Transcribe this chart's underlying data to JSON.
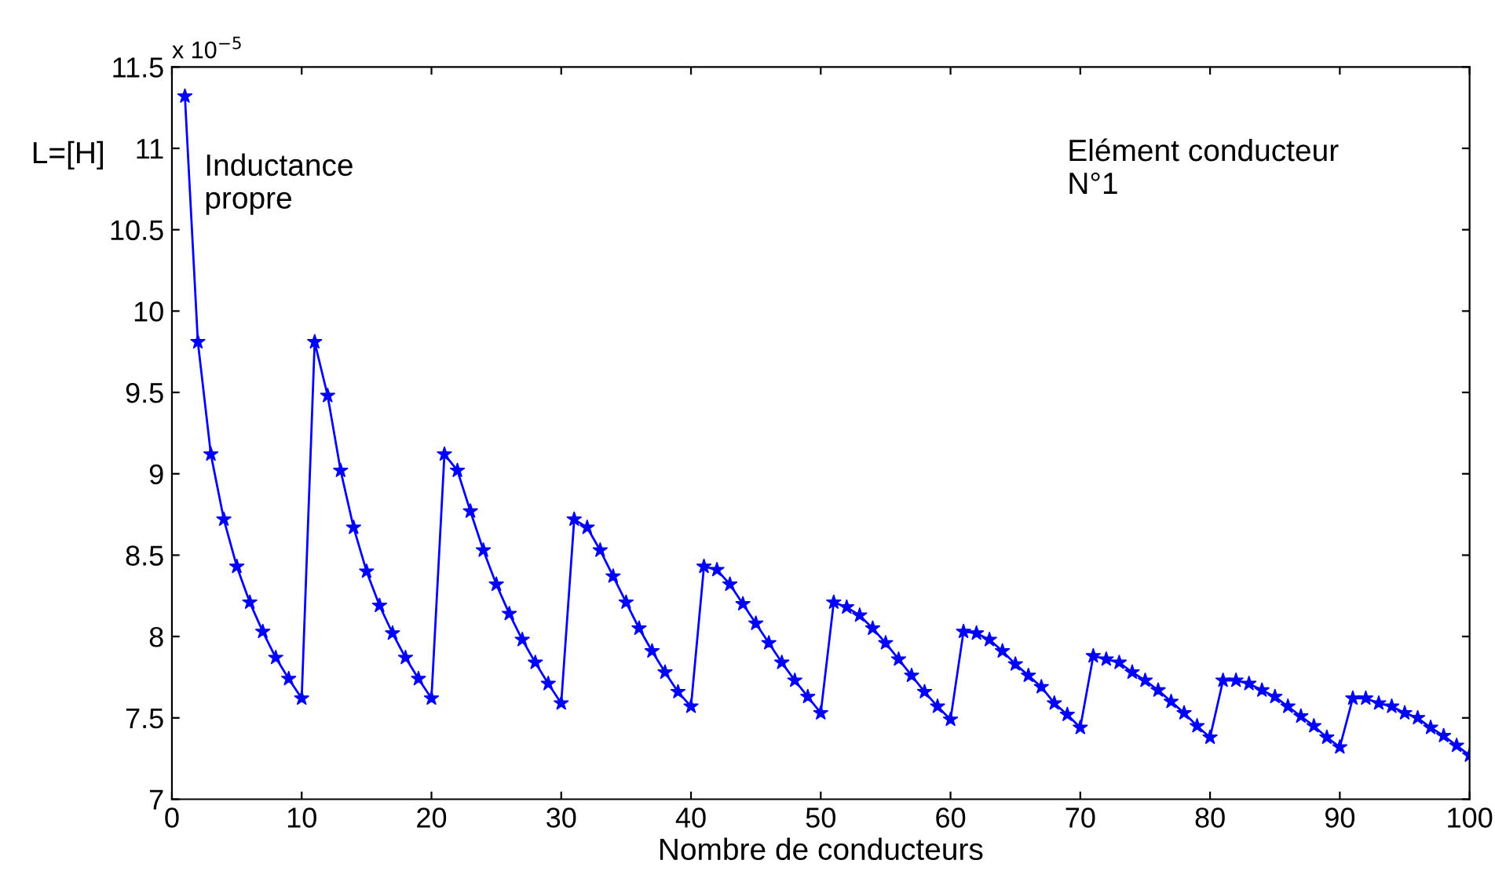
{
  "chart_data": {
    "type": "line",
    "xlabel": "Nombre de conducteurs",
    "ylabel": "L=[H]",
    "annotations": [
      "x 10$^{−5}$",
      "Inductance\npropre",
      "Elément conducteur\nN°1"
    ],
    "x": [
      1,
      2,
      3,
      4,
      5,
      6,
      7,
      8,
      9,
      10,
      11,
      12,
      13,
      14,
      15,
      16,
      17,
      18,
      19,
      20,
      21,
      22,
      23,
      24,
      25,
      26,
      27,
      28,
      29,
      30,
      31,
      32,
      33,
      34,
      35,
      36,
      37,
      38,
      39,
      40,
      41,
      42,
      43,
      44,
      45,
      46,
      47,
      48,
      49,
      50,
      51,
      52,
      53,
      54,
      55,
      56,
      57,
      58,
      59,
      60,
      61,
      62,
      63,
      64,
      65,
      66,
      67,
      68,
      69,
      70,
      71,
      72,
      73,
      74,
      75,
      76,
      77,
      78,
      79,
      80,
      81,
      82,
      83,
      84,
      85,
      86,
      87,
      88,
      89,
      90,
      91,
      92,
      93,
      94,
      95,
      96,
      97,
      98,
      99,
      100
    ],
    "series": [
      {
        "color": "#0000ff",
        "values": [
          11.32,
          9.81,
          9.12,
          8.72,
          8.43,
          8.21,
          8.03,
          7.87,
          7.74,
          7.62,
          9.81,
          9.48,
          9.02,
          8.67,
          8.4,
          8.19,
          8.02,
          7.87,
          7.74,
          7.62,
          9.12,
          9.02,
          8.77,
          8.53,
          8.32,
          8.14,
          7.98,
          7.84,
          7.71,
          7.59,
          8.72,
          8.67,
          8.53,
          8.37,
          8.21,
          8.05,
          7.91,
          7.78,
          7.66,
          7.57,
          8.43,
          8.41,
          8.32,
          8.2,
          8.08,
          7.96,
          7.84,
          7.73,
          7.63,
          7.53,
          8.21,
          8.18,
          8.13,
          8.05,
          7.96,
          7.86,
          7.76,
          7.66,
          7.57,
          7.49,
          8.03,
          8.02,
          7.98,
          7.91,
          7.83,
          7.76,
          7.69,
          7.59,
          7.52,
          7.44,
          7.88,
          7.86,
          7.84,
          7.78,
          7.73,
          7.67,
          7.6,
          7.53,
          7.45,
          7.38,
          7.73,
          7.73,
          7.71,
          7.67,
          7.63,
          7.57,
          7.51,
          7.45,
          7.38,
          7.32,
          7.62,
          7.62,
          7.59,
          7.57,
          7.53,
          7.5,
          7.44,
          7.39,
          7.33,
          7.27
        ]
      }
    ],
    "xlim": [
      0,
      100
    ],
    "xticks": [
      0,
      10,
      20,
      30,
      40,
      50,
      60,
      70,
      80,
      90,
      100
    ],
    "ylim": [
      7,
      11.5
    ],
    "yticks": [
      7,
      7.5,
      8,
      8.5,
      9,
      9.5,
      10,
      10.5,
      11,
      11.5
    ],
    "marker": "star",
    "line_style": "solid",
    "grid": false,
    "legend": false
  }
}
